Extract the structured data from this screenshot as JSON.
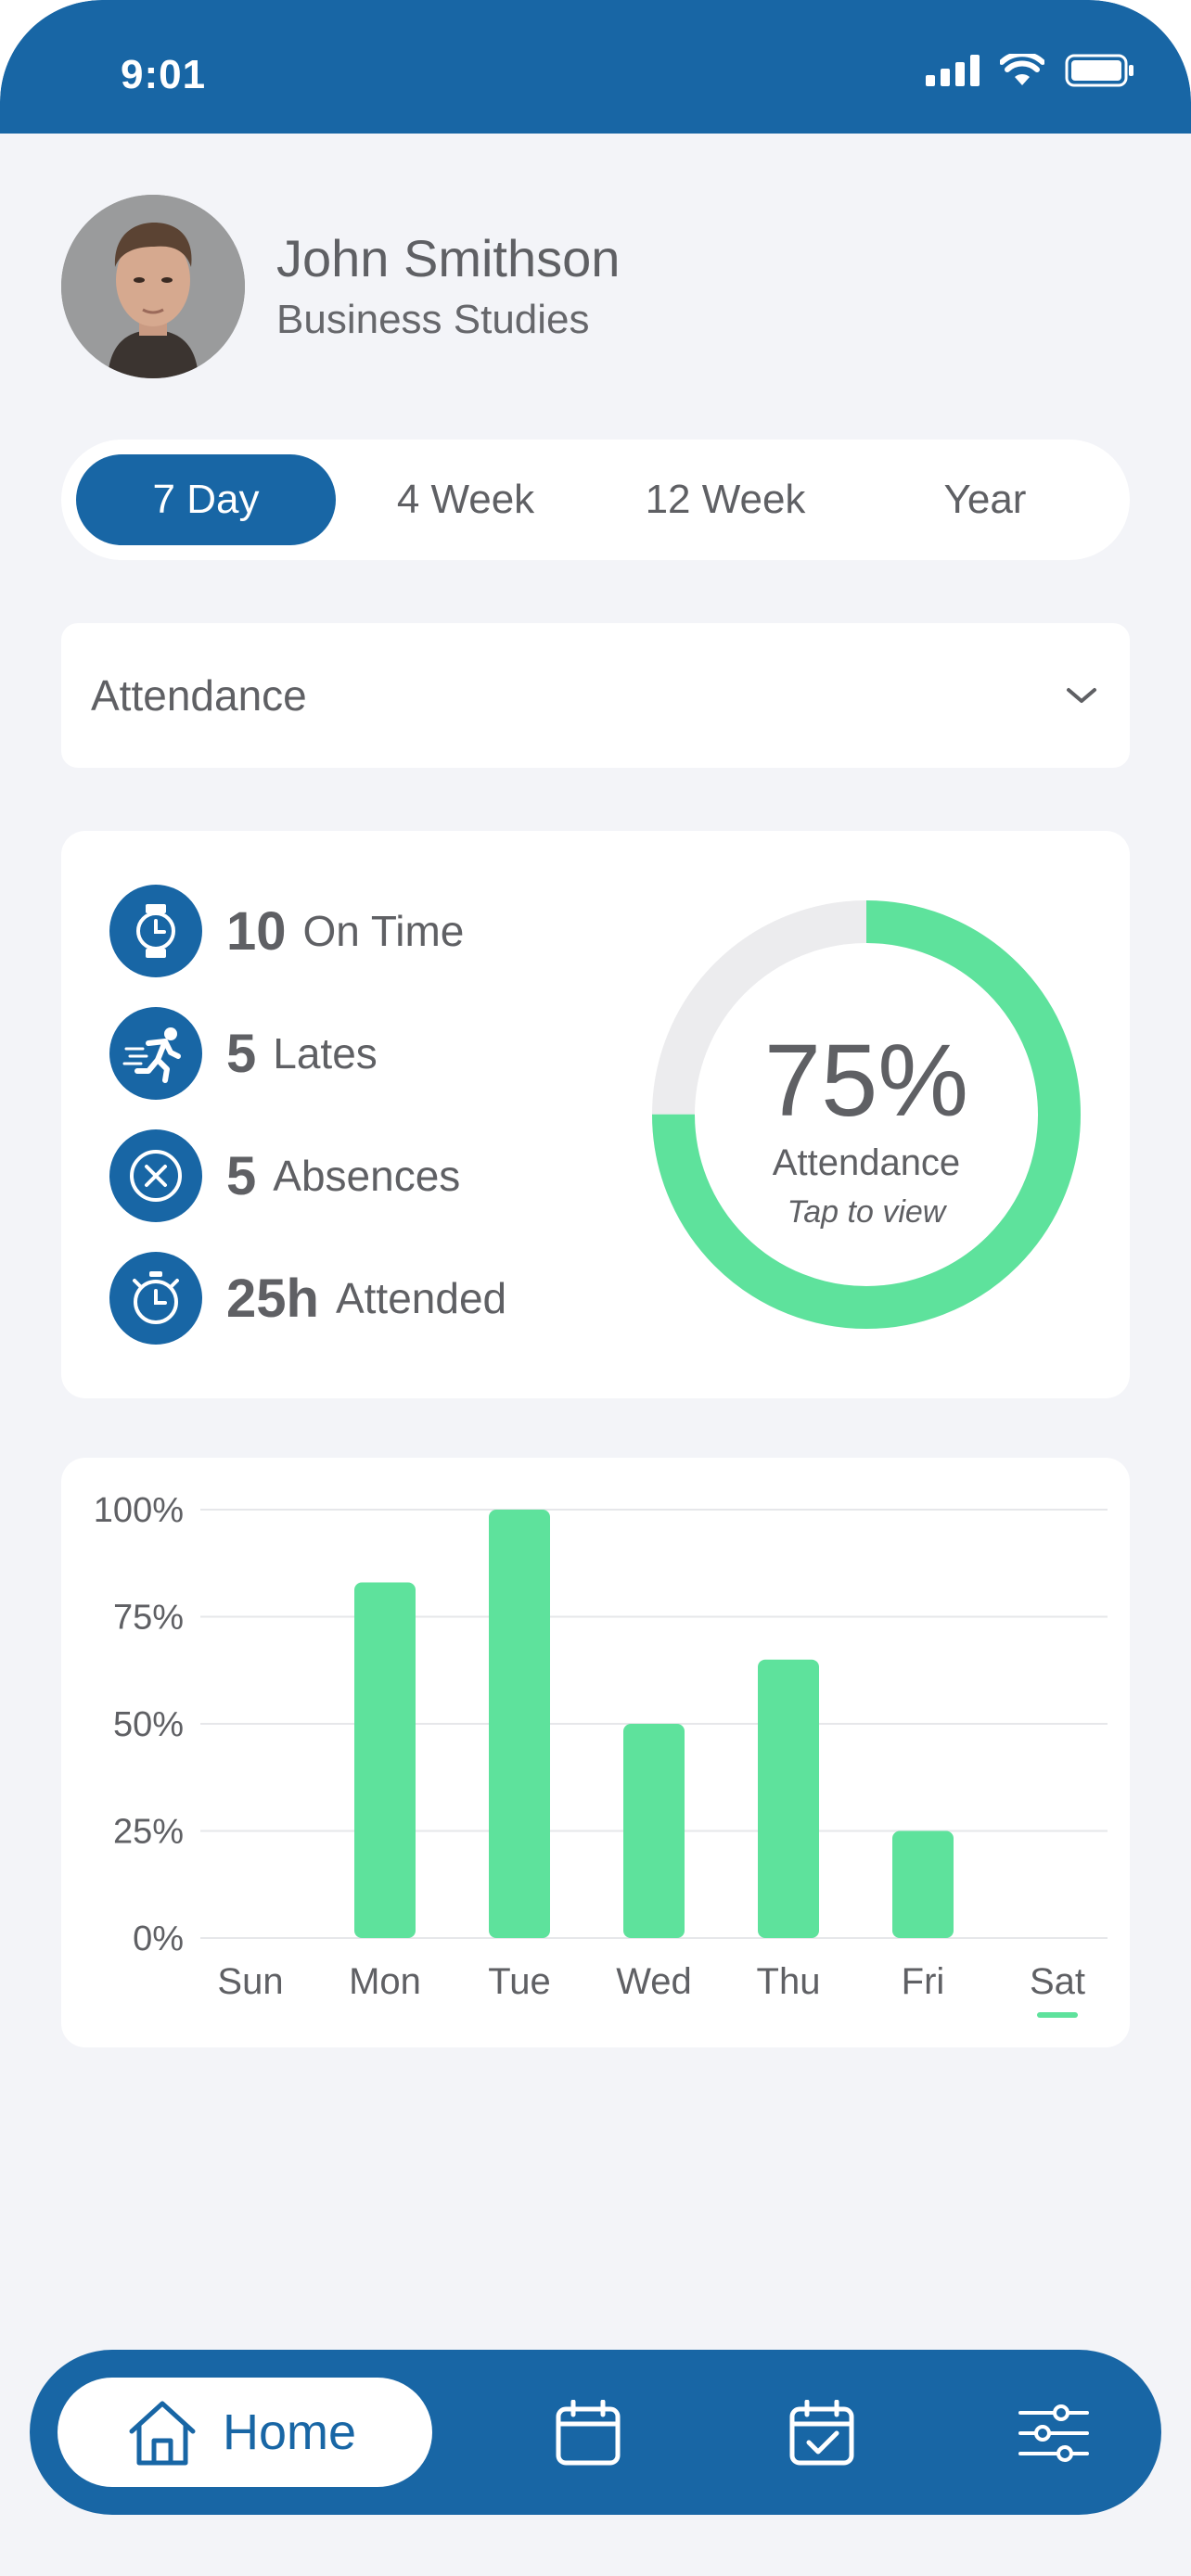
{
  "status_bar": {
    "time": "9:01"
  },
  "profile": {
    "name": "John Smithson",
    "department": "Business Studies"
  },
  "tabs": [
    {
      "label": "7 Day",
      "active": true
    },
    {
      "label": "4 Week",
      "active": false
    },
    {
      "label": "12 Week",
      "active": false
    },
    {
      "label": "Year",
      "active": false
    }
  ],
  "metric_select": {
    "value": "Attendance"
  },
  "stats": [
    {
      "icon": "watch-icon",
      "value": "10",
      "label": "On Time"
    },
    {
      "icon": "running-person-icon",
      "value": "5",
      "label": "Lates"
    },
    {
      "icon": "x-circle-icon",
      "value": "5",
      "label": "Absences"
    },
    {
      "icon": "stopwatch-icon",
      "value": "25h",
      "label": "Attended"
    }
  ],
  "attendance_ring": {
    "percent_text": "75%",
    "percent_value": 75,
    "label": "Attendance",
    "hint": "Tap to view"
  },
  "colors": {
    "primary": "#1866a5",
    "accent": "#5ee29c",
    "ring_track": "#ececee",
    "background": "#f3f4f8"
  },
  "chart_data": {
    "type": "bar",
    "categories": [
      "Sun",
      "Mon",
      "Tue",
      "Wed",
      "Thu",
      "Fri",
      "Sat"
    ],
    "values": [
      0,
      83,
      100,
      50,
      65,
      25,
      0
    ],
    "yticks": [
      "0%",
      "25%",
      "50%",
      "75%",
      "100%"
    ],
    "ylim": [
      0,
      100
    ],
    "highlighted_category": "Sat",
    "grid": true
  },
  "bottom_nav": {
    "home_label": "Home",
    "items": [
      "home-icon",
      "calendar-icon",
      "calendar-check-icon",
      "sliders-icon"
    ]
  }
}
